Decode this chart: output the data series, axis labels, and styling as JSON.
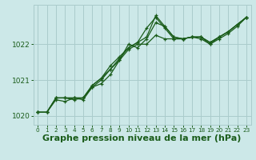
{
  "background_color": "#cce8e8",
  "grid_color": "#aacccc",
  "line_color": "#1a5c1a",
  "xlabel": "Graphe pression niveau de la mer (hPa)",
  "xlabel_fontsize": 8,
  "ylim": [
    1019.75,
    1023.1
  ],
  "xlim": [
    -0.5,
    23.5
  ],
  "yticks": [
    1020,
    1021,
    1022
  ],
  "xticks": [
    0,
    1,
    2,
    3,
    4,
    5,
    6,
    7,
    8,
    9,
    10,
    11,
    12,
    13,
    14,
    15,
    16,
    17,
    18,
    19,
    20,
    21,
    22,
    23
  ],
  "series": [
    [
      1020.1,
      1020.1,
      1020.5,
      1020.5,
      1020.45,
      1020.5,
      1020.85,
      1021.05,
      1021.3,
      1021.55,
      1022.0,
      1021.9,
      1022.15,
      1022.6,
      1022.5,
      1022.2,
      1022.15,
      1022.2,
      1022.2,
      1022.0,
      1022.2,
      1022.35,
      1022.55,
      1022.75
    ],
    [
      1020.1,
      1020.1,
      1020.45,
      1020.4,
      1020.5,
      1020.45,
      1020.8,
      1020.9,
      1021.15,
      1021.55,
      1021.85,
      1022.0,
      1022.0,
      1022.25,
      1022.15,
      1022.15,
      1022.15,
      1022.2,
      1022.15,
      1022.0,
      1022.15,
      1022.3,
      1022.5,
      1022.75
    ],
    [
      1020.1,
      1020.1,
      1020.5,
      1020.5,
      1020.5,
      1020.5,
      1020.8,
      1021.0,
      1021.3,
      1021.6,
      1021.9,
      1022.05,
      1022.45,
      1022.75,
      1022.45,
      1022.15,
      1022.15,
      1022.2,
      1022.2,
      1022.05,
      1022.2,
      1022.35,
      1022.55,
      1022.75
    ],
    [
      1020.1,
      1020.1,
      1020.5,
      1020.5,
      1020.5,
      1020.5,
      1020.85,
      1021.05,
      1021.4,
      1021.65,
      1021.9,
      1022.05,
      1022.2,
      1022.8,
      1022.5,
      1022.2,
      1022.15,
      1022.2,
      1022.2,
      1022.05,
      1022.2,
      1022.35,
      1022.55,
      1022.75
    ]
  ]
}
